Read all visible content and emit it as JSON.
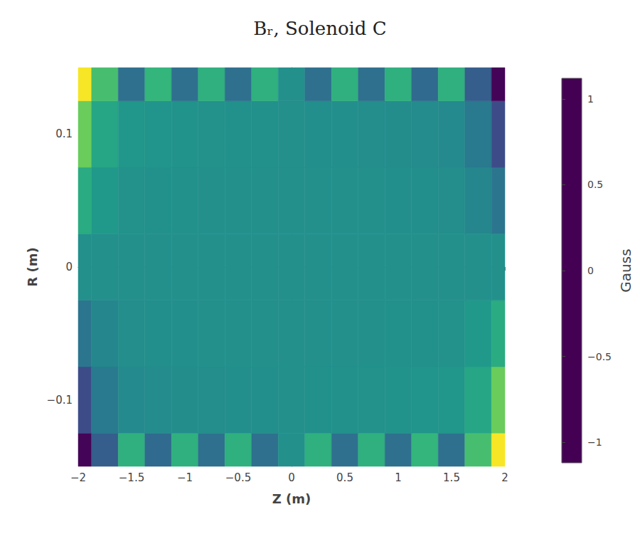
{
  "chart_data": {
    "type": "heatmap",
    "title": "Bᵣ, Solenoid C",
    "x_label": "Z (m)",
    "y_label": "R (m)",
    "x": [
      -2,
      -1.75,
      -1.5,
      -1.25,
      -1,
      -0.75,
      -0.5,
      -0.25,
      0,
      0.25,
      0.5,
      0.75,
      1,
      1.25,
      1.5,
      1.75,
      2
    ],
    "y": [
      -0.15,
      -0.1,
      -0.05,
      0,
      0.05,
      0.1,
      0.15
    ],
    "cells": [
      [
        -1.1,
        -0.45,
        0.3,
        -0.35,
        0.3,
        -0.3,
        0.3,
        -0.3,
        0,
        0.3,
        -0.3,
        0.3,
        -0.3,
        0.35,
        -0.3,
        0.45,
        1.1
      ],
      [
        -0.6,
        -0.2,
        -0.05,
        -0.04,
        -0.03,
        -0.02,
        -0.01,
        -0.01,
        0,
        0.01,
        0.01,
        0.02,
        0.03,
        0.04,
        0.05,
        0.2,
        0.6
      ],
      [
        -0.25,
        -0.08,
        -0.02,
        -0.01,
        -0.01,
        0,
        0,
        0,
        0,
        0,
        0,
        0,
        0.01,
        0.01,
        0.02,
        0.08,
        0.25
      ],
      [
        0,
        0,
        0,
        0,
        0,
        0,
        0,
        0,
        0,
        0,
        0,
        0,
        0,
        0,
        0,
        0,
        0
      ],
      [
        0.25,
        0.08,
        0.02,
        0.01,
        0.01,
        0,
        0,
        0,
        0,
        0,
        0,
        0,
        -0.01,
        -0.01,
        -0.02,
        -0.08,
        -0.25
      ],
      [
        0.6,
        0.2,
        0.05,
        0.04,
        0.03,
        0.02,
        0.01,
        0.01,
        0,
        -0.01,
        -0.01,
        -0.02,
        -0.03,
        -0.04,
        -0.05,
        -0.2,
        -0.6
      ],
      [
        1.1,
        0.45,
        -0.3,
        0.35,
        -0.3,
        0.3,
        -0.3,
        0.3,
        0,
        -0.3,
        0.3,
        -0.3,
        0.3,
        -0.35,
        0.3,
        -0.45,
        -1.1
      ]
    ],
    "xlim": [
      -2,
      2
    ],
    "xticks": [
      {
        "value": -2,
        "label": "−2"
      },
      {
        "value": -1.5,
        "label": "−1.5"
      },
      {
        "value": -1,
        "label": "−1"
      },
      {
        "value": -0.5,
        "label": "−0.5"
      },
      0,
      0.5,
      1,
      1.5,
      2
    ],
    "ylim": [
      -0.15,
      0.15
    ],
    "yticks": [
      {
        "value": -0.1,
        "label": "−0.1"
      },
      0,
      0.1
    ],
    "grid": true,
    "colorbar": {
      "title": "Gauss",
      "range": [
        -1.12,
        1.12
      ],
      "ticks": [
        {
          "value": -1,
          "label": "−1"
        },
        {
          "value": -0.5,
          "label": "−0.5"
        },
        0,
        0.5,
        1
      ]
    }
  }
}
